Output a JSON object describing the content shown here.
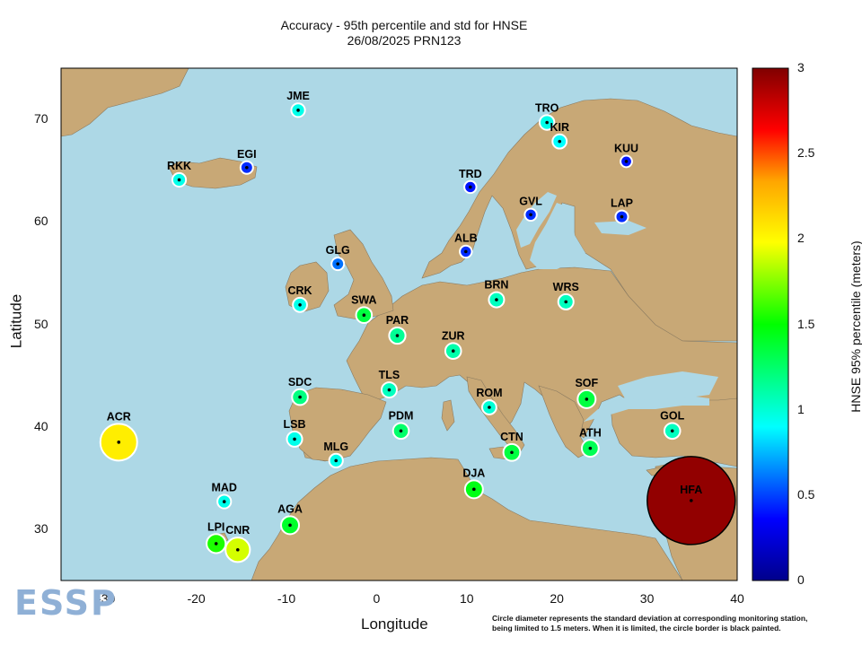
{
  "title_line1": "Accuracy - 95th percentile and std for HNSE",
  "title_line2": "26/08/2025 PRN123",
  "xlabel": "Longitude",
  "ylabel": "Latitude",
  "xticks": [
    "-30",
    "-20",
    "-10",
    "0",
    "10",
    "20",
    "30",
    "40"
  ],
  "yticks": [
    "30",
    "40",
    "50",
    "60",
    "70"
  ],
  "colorbar": {
    "label": "HNSE 95% percentile (meters)",
    "ticks": [
      "0",
      "0.5",
      "1",
      "1.5",
      "2",
      "2.5",
      "3"
    ],
    "min": 0,
    "max": 3
  },
  "footnote_line1": "Circle diameter represents the standard deviation at corresponding monitoring station,",
  "footnote_line2": "being limited to 1.5 meters. When it is limited, the circle border is black painted.",
  "logo_text": "ESSP",
  "colors": {
    "sea": "#add8e6",
    "land": "#c8a876"
  },
  "stations": [
    {
      "name": "JME",
      "lon": -8.7,
      "lat": 70.9,
      "hnse": 0.95,
      "std": 0.12,
      "limited": false
    },
    {
      "name": "TRO",
      "lon": 18.9,
      "lat": 69.7,
      "hnse": 0.95,
      "std": 0.14,
      "limited": false
    },
    {
      "name": "KIR",
      "lon": 20.3,
      "lat": 67.85,
      "hnse": 0.9,
      "std": 0.13,
      "limited": false
    },
    {
      "name": "EGI",
      "lon": -14.4,
      "lat": 65.3,
      "hnse": 0.45,
      "std": 0.1,
      "limited": false
    },
    {
      "name": "RKK",
      "lon": -21.9,
      "lat": 64.1,
      "hnse": 0.95,
      "std": 0.12,
      "limited": false
    },
    {
      "name": "KUU",
      "lon": 27.7,
      "lat": 65.9,
      "hnse": 0.4,
      "std": 0.08,
      "limited": false
    },
    {
      "name": "TRD",
      "lon": 10.4,
      "lat": 63.4,
      "hnse": 0.4,
      "std": 0.09,
      "limited": false
    },
    {
      "name": "GVL",
      "lon": 17.1,
      "lat": 60.7,
      "hnse": 0.45,
      "std": 0.09,
      "limited": false
    },
    {
      "name": "LAP",
      "lon": 27.2,
      "lat": 60.5,
      "hnse": 0.45,
      "std": 0.1,
      "limited": false
    },
    {
      "name": "ALB",
      "lon": 9.9,
      "lat": 57.1,
      "hnse": 0.45,
      "std": 0.09,
      "limited": false
    },
    {
      "name": "GLG",
      "lon": -4.3,
      "lat": 55.9,
      "hnse": 0.6,
      "std": 0.1,
      "limited": false
    },
    {
      "name": "CRK",
      "lon": -8.5,
      "lat": 51.9,
      "hnse": 0.95,
      "std": 0.13,
      "limited": false
    },
    {
      "name": "BRN",
      "lon": 13.3,
      "lat": 52.4,
      "hnse": 1.05,
      "std": 0.15,
      "limited": false
    },
    {
      "name": "WRS",
      "lon": 21.0,
      "lat": 52.2,
      "hnse": 1.05,
      "std": 0.15,
      "limited": false
    },
    {
      "name": "SWA",
      "lon": -1.4,
      "lat": 50.9,
      "hnse": 1.35,
      "std": 0.16,
      "limited": false
    },
    {
      "name": "PAR",
      "lon": 2.3,
      "lat": 48.9,
      "hnse": 1.15,
      "std": 0.17,
      "limited": false
    },
    {
      "name": "ZUR",
      "lon": 8.5,
      "lat": 47.4,
      "hnse": 1.1,
      "std": 0.16,
      "limited": false
    },
    {
      "name": "TLS",
      "lon": 1.4,
      "lat": 43.6,
      "hnse": 1.05,
      "std": 0.15,
      "limited": false
    },
    {
      "name": "SDC",
      "lon": -8.5,
      "lat": 42.9,
      "hnse": 1.2,
      "std": 0.16,
      "limited": false
    },
    {
      "name": "ROM",
      "lon": 12.5,
      "lat": 41.9,
      "hnse": 1.0,
      "std": 0.13,
      "limited": false
    },
    {
      "name": "SOF",
      "lon": 23.3,
      "lat": 42.7,
      "hnse": 1.35,
      "std": 0.2,
      "limited": false
    },
    {
      "name": "GOL",
      "lon": 32.8,
      "lat": 39.6,
      "hnse": 1.05,
      "std": 0.16,
      "limited": false
    },
    {
      "name": "LSB",
      "lon": -9.1,
      "lat": 38.8,
      "hnse": 0.95,
      "std": 0.15,
      "limited": false
    },
    {
      "name": "PDM",
      "lon": 2.7,
      "lat": 39.6,
      "hnse": 1.25,
      "std": 0.16,
      "limited": false
    },
    {
      "name": "ATH",
      "lon": 23.7,
      "lat": 37.9,
      "hnse": 1.3,
      "std": 0.18,
      "limited": false
    },
    {
      "name": "CTN",
      "lon": 15.0,
      "lat": 37.5,
      "hnse": 1.35,
      "std": 0.18,
      "limited": false
    },
    {
      "name": "MLG",
      "lon": -4.5,
      "lat": 36.7,
      "hnse": 0.95,
      "std": 0.12,
      "limited": false
    },
    {
      "name": "ACR",
      "lon": -28.6,
      "lat": 38.5,
      "hnse": 2.05,
      "std": 0.55,
      "limited": false
    },
    {
      "name": "DJA",
      "lon": 10.8,
      "lat": 33.9,
      "hnse": 1.45,
      "std": 0.2,
      "limited": false
    },
    {
      "name": "MAD",
      "lon": -16.9,
      "lat": 32.7,
      "hnse": 0.95,
      "std": 0.12,
      "limited": false
    },
    {
      "name": "HFA",
      "lon": 34.9,
      "lat": 32.8,
      "hnse": 2.95,
      "std": 1.5,
      "limited": true
    },
    {
      "name": "AGA",
      "lon": -9.6,
      "lat": 30.4,
      "hnse": 1.4,
      "std": 0.2,
      "limited": false
    },
    {
      "name": "LPI",
      "lon": -17.8,
      "lat": 28.6,
      "hnse": 1.55,
      "std": 0.22,
      "limited": false
    },
    {
      "name": "CNR",
      "lon": -15.4,
      "lat": 28.0,
      "hnse": 1.9,
      "std": 0.32,
      "limited": false
    }
  ]
}
